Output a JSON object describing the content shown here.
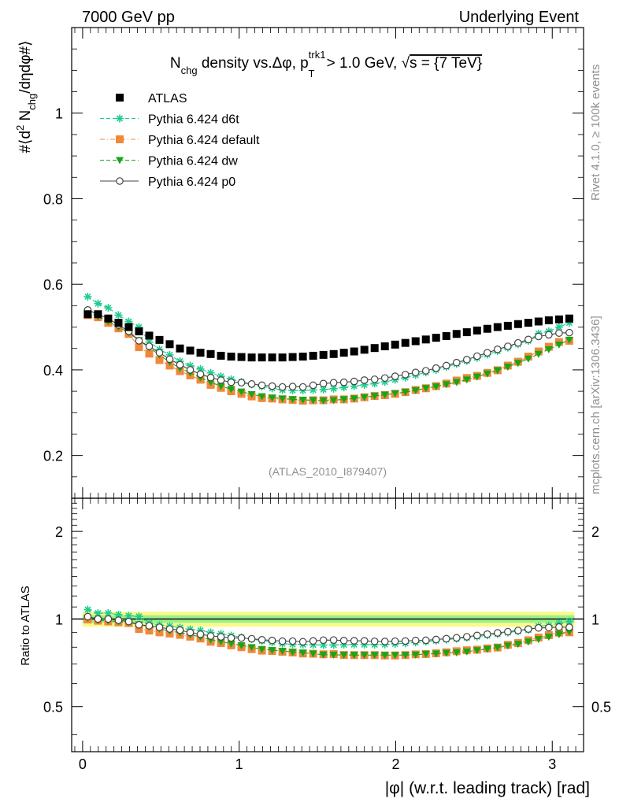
{
  "header": {
    "left": "7000 GeV pp",
    "right": "Underlying Event"
  },
  "side": {
    "rivet": "Rivet 4.1.0, ≥ 100k events",
    "mcplots": "mcplots.cern.ch [arXiv:1306.3436]"
  },
  "chart_data": {
    "type": "scatter",
    "title": "N_chg density vs. Δφ, p_T^trk1 > 1.0 GeV, √s = {7 TeV}",
    "title_parts": {
      "n": "N",
      "chg": "chg",
      "mid": " density vs.Δφ, p",
      "trk1": "trk1",
      "T": "T",
      "tail": " > 1.0 GeV, ",
      "sqrt": "√",
      "s": "s = {7 TeV}"
    },
    "ylabel_parts": {
      "a": "#⟨d",
      "two": "2",
      "b": " N",
      "chg": "chg",
      "c": "/dηdφ#⟩"
    },
    "xlabel": "|φ| (w.r.t. leading track) [rad]",
    "ylabel_ratio": "Ratio to ATLAS",
    "analysis_id": "(ATLAS_2010_I879407)",
    "xlim": [
      -0.07,
      3.2
    ],
    "ylim": [
      0.1,
      1.2
    ],
    "ratio_ylim": [
      0.35,
      2.6
    ],
    "ratio_scale": "log",
    "xticks": [
      0,
      1,
      2,
      3
    ],
    "xtick_labels": [
      "0",
      "1",
      "2",
      "3"
    ],
    "yticks": [
      0.2,
      0.4,
      0.6,
      0.8,
      1.0
    ],
    "ytick_labels": [
      "0.2",
      "0.4",
      "0.6",
      "0.8",
      "1"
    ],
    "ratio_yticks": [
      0.5,
      1,
      2
    ],
    "ratio_ytick_labels": [
      "0.5",
      "1",
      "2"
    ],
    "band_inner": [
      0.97,
      1.03
    ],
    "band_outer": [
      0.94,
      1.06
    ],
    "x": [
      0.0327,
      0.0982,
      0.1636,
      0.2291,
      0.2945,
      0.36,
      0.4254,
      0.4909,
      0.5563,
      0.6218,
      0.6872,
      0.7527,
      0.8181,
      0.8836,
      0.949,
      1.0145,
      1.0799,
      1.1454,
      1.2108,
      1.2763,
      1.3417,
      1.4072,
      1.4726,
      1.5381,
      1.6035,
      1.669,
      1.7344,
      1.7999,
      1.8653,
      1.9308,
      1.9962,
      2.0617,
      2.1271,
      2.1926,
      2.258,
      2.3235,
      2.3889,
      2.4544,
      2.5198,
      2.5853,
      2.6507,
      2.7162,
      2.7816,
      2.8471,
      2.9125,
      2.978,
      3.0434,
      3.1089
    ],
    "legend_position": "top-left",
    "series": [
      {
        "name": "ATLAS",
        "color": "#000000",
        "marker": "square",
        "line": "none",
        "values": [
          0.53,
          0.53,
          0.52,
          0.51,
          0.5,
          0.49,
          0.48,
          0.47,
          0.46,
          0.45,
          0.445,
          0.44,
          0.437,
          0.433,
          0.431,
          0.43,
          0.429,
          0.429,
          0.429,
          0.429,
          0.43,
          0.431,
          0.433,
          0.435,
          0.437,
          0.44,
          0.443,
          0.447,
          0.451,
          0.455,
          0.459,
          0.463,
          0.467,
          0.471,
          0.475,
          0.479,
          0.484,
          0.488,
          0.492,
          0.496,
          0.5,
          0.503,
          0.507,
          0.51,
          0.513,
          0.516,
          0.518,
          0.52
        ]
      },
      {
        "name": "Pythia 6.424 d6t",
        "color": "#1fcc8c",
        "marker": "star",
        "line": "dashed",
        "values": [
          0.571,
          0.555,
          0.545,
          0.528,
          0.513,
          0.5,
          0.465,
          0.448,
          0.435,
          0.42,
          0.41,
          0.402,
          0.393,
          0.385,
          0.378,
          0.372,
          0.366,
          0.361,
          0.357,
          0.353,
          0.352,
          0.352,
          0.353,
          0.354,
          0.356,
          0.359,
          0.362,
          0.365,
          0.368,
          0.372,
          0.377,
          0.382,
          0.388,
          0.394,
          0.4,
          0.407,
          0.414,
          0.421,
          0.428,
          0.436,
          0.444,
          0.452,
          0.46,
          0.468,
          0.485,
          0.49,
          0.5,
          0.51
        ]
      },
      {
        "name": "Pythia 6.424 default",
        "color": "#f0883a",
        "marker": "square",
        "line": "dashdot",
        "values": [
          0.528,
          0.523,
          0.51,
          0.497,
          0.484,
          0.453,
          0.438,
          0.423,
          0.41,
          0.397,
          0.387,
          0.377,
          0.365,
          0.358,
          0.35,
          0.344,
          0.338,
          0.334,
          0.333,
          0.331,
          0.33,
          0.328,
          0.329,
          0.329,
          0.331,
          0.331,
          0.333,
          0.336,
          0.339,
          0.341,
          0.344,
          0.348,
          0.353,
          0.357,
          0.362,
          0.368,
          0.375,
          0.381,
          0.386,
          0.393,
          0.399,
          0.41,
          0.419,
          0.431,
          0.443,
          0.454,
          0.465,
          0.468
        ]
      },
      {
        "name": "Pythia 6.424 dw",
        "color": "#17a616",
        "marker": "triangle-down",
        "line": "dashed",
        "values": [
          0.535,
          0.525,
          0.513,
          0.5,
          0.487,
          0.469,
          0.452,
          0.435,
          0.418,
          0.404,
          0.393,
          0.382,
          0.371,
          0.362,
          0.355,
          0.349,
          0.343,
          0.338,
          0.335,
          0.333,
          0.331,
          0.33,
          0.329,
          0.328,
          0.329,
          0.331,
          0.333,
          0.336,
          0.339,
          0.342,
          0.345,
          0.348,
          0.352,
          0.357,
          0.361,
          0.366,
          0.371,
          0.377,
          0.384,
          0.391,
          0.399,
          0.407,
          0.416,
          0.426,
          0.437,
          0.448,
          0.459,
          0.47
        ]
      },
      {
        "name": "Pythia 6.424 p0",
        "color": "#444444",
        "marker": "circle-open",
        "line": "solid",
        "values": [
          0.54,
          0.53,
          0.52,
          0.505,
          0.49,
          0.468,
          0.455,
          0.44,
          0.425,
          0.412,
          0.4,
          0.39,
          0.382,
          0.376,
          0.371,
          0.37,
          0.367,
          0.364,
          0.362,
          0.36,
          0.361,
          0.36,
          0.364,
          0.368,
          0.37,
          0.371,
          0.373,
          0.376,
          0.378,
          0.381,
          0.385,
          0.389,
          0.394,
          0.398,
          0.404,
          0.41,
          0.417,
          0.424,
          0.432,
          0.44,
          0.448,
          0.455,
          0.463,
          0.471,
          0.478,
          0.482,
          0.486,
          0.487
        ]
      }
    ]
  }
}
